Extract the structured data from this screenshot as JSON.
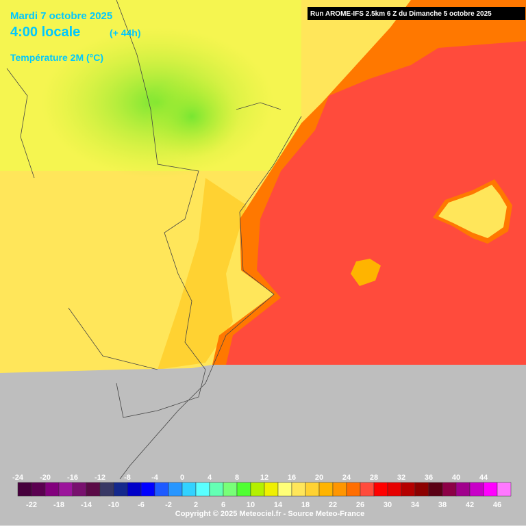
{
  "header": {
    "date": "Mardi 7 octobre 2025",
    "time": "4:00 locale",
    "lead": "(+ 44h)",
    "parameter": "Température 2M (°C)",
    "run": "Run AROME-IFS 2.5km 6 Z du Dimanche 5 octobre 2025"
  },
  "legend": {
    "values": [
      -24,
      -22,
      -20,
      -18,
      -16,
      -14,
      -12,
      -10,
      -8,
      -6,
      -4,
      -2,
      0,
      2,
      4,
      6,
      8,
      10,
      12,
      14,
      16,
      18,
      20,
      22,
      24,
      26,
      28,
      30,
      32,
      34,
      36,
      38,
      40,
      42,
      44,
      46
    ],
    "colors": [
      "#46003c",
      "#5a0050",
      "#82007d",
      "#9b149b",
      "#78106e",
      "#5a0a46",
      "#373764",
      "#14288c",
      "#0000c8",
      "#0000ff",
      "#1e5aff",
      "#2896ff",
      "#32d2ff",
      "#5affff",
      "#64ffb4",
      "#78ff78",
      "#50ff32",
      "#b4f000",
      "#f0f000",
      "#ffff78",
      "#ffe65a",
      "#ffd232",
      "#ffb400",
      "#ff9600",
      "#ff6e00",
      "#ff4b3c",
      "#ff0000",
      "#e60000",
      "#b40000",
      "#8c0000",
      "#5a0014",
      "#8c0046",
      "#a0008c",
      "#c800c8",
      "#ff00ff",
      "#ff78ff"
    ]
  },
  "footer": {
    "copyright": "Copyright © 2025 Meteociel.fr - Source Meteo-France"
  }
}
